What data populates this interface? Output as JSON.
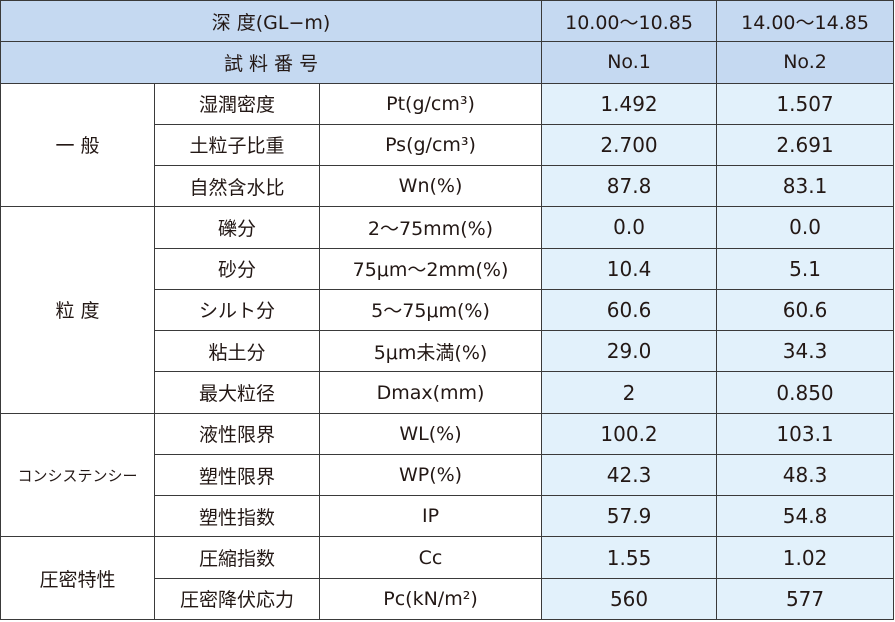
{
  "header": {
    "depth_label": "深 度(GL−m)",
    "sample_label": "試 料 番 号",
    "samples": [
      {
        "depth": "10.00～10.85",
        "no": "No.1"
      },
      {
        "depth": "14.00～14.85",
        "no": "No.2"
      }
    ]
  },
  "groups": [
    {
      "name": "一 般",
      "rows": [
        {
          "label": "湿潤密度",
          "unit": "Pt(g/cm³)",
          "v1": "1.492",
          "v2": "1.507"
        },
        {
          "label": "土粒子比重",
          "unit": "Ps(g/cm³)",
          "v1": "2.700",
          "v2": "2.691"
        },
        {
          "label": "自然含水比",
          "unit": "Wn(%)",
          "v1": "87.8",
          "v2": "83.1"
        }
      ]
    },
    {
      "name": "粒 度",
      "rows": [
        {
          "label": "礫分",
          "unit": "2～75mm(%)",
          "v1": "0.0",
          "v2": "0.0"
        },
        {
          "label": "砂分",
          "unit": "75μm～2mm(%)",
          "v1": "10.4",
          "v2": "5.1"
        },
        {
          "label": "シルト分",
          "unit": "5～75μm(%)",
          "v1": "60.6",
          "v2": "60.6"
        },
        {
          "label": "粘土分",
          "unit": "5μm未満(%)",
          "v1": "29.0",
          "v2": "34.3"
        },
        {
          "label": "最大粒径",
          "unit": "Dmax(mm)",
          "v1": "2",
          "v2": "0.850"
        }
      ]
    },
    {
      "name": "コンシステンシー",
      "rows": [
        {
          "label": "液性限界",
          "unit": "WL(%)",
          "v1": "100.2",
          "v2": "103.1"
        },
        {
          "label": "塑性限界",
          "unit": "WP(%)",
          "v1": "42.3",
          "v2": "48.3"
        },
        {
          "label": "塑性指数",
          "unit": "IP",
          "v1": "57.9",
          "v2": "54.8"
        }
      ]
    },
    {
      "name": "圧密特性",
      "rows": [
        {
          "label": "圧縮指数",
          "unit": "Cc",
          "v1": "1.55",
          "v2": "1.02"
        },
        {
          "label": "圧密降伏応力",
          "unit": "Pc(kN/m²)",
          "v1": "560",
          "v2": "577"
        }
      ]
    }
  ]
}
